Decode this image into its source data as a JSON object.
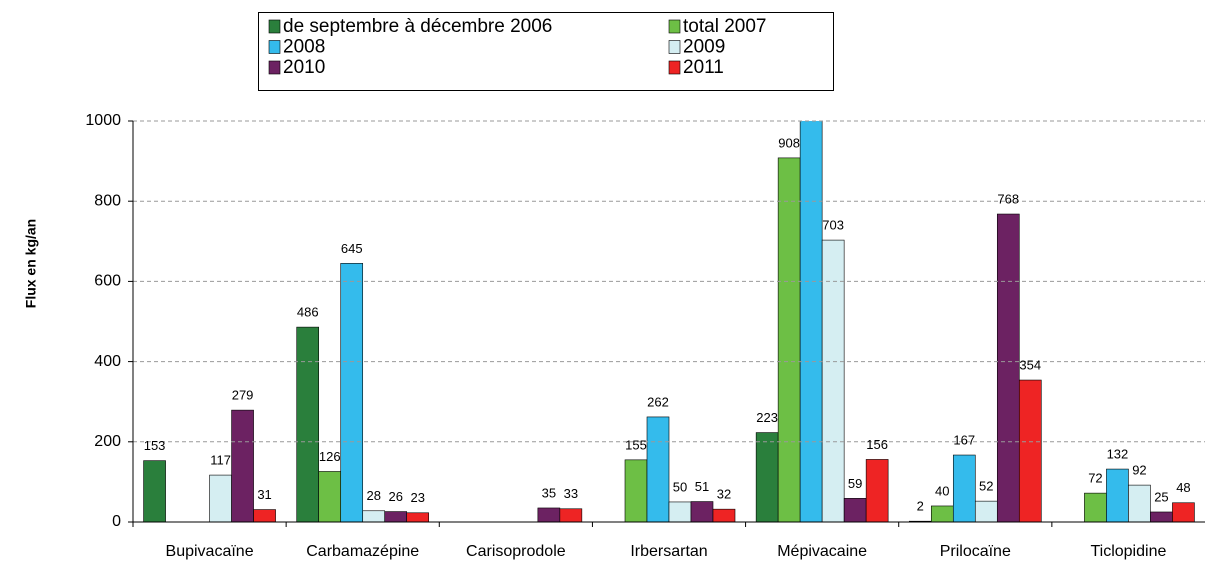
{
  "chart_data": {
    "type": "bar",
    "y_axis_label": "Flux en kg/an",
    "categories": [
      "Bupivacaïne",
      "Carbamazépine",
      "Carisoprodole",
      "Irbersartan",
      "Mépivacaine",
      "Prilocaïne",
      "Ticlopidine"
    ],
    "series": [
      {
        "name": "de septembre à décembre 2006",
        "color": "#2a7f3c",
        "values": [
          153,
          486,
          null,
          null,
          223,
          2,
          null
        ]
      },
      {
        "name": "total 2007",
        "color": "#6dbf45",
        "values": [
          null,
          126,
          null,
          155,
          908,
          40,
          72
        ]
      },
      {
        "name": "2008",
        "color": "#34bbec",
        "values": [
          null,
          645,
          null,
          262,
          1100,
          167,
          132
        ]
      },
      {
        "name": "2009",
        "color": "#d5eef2",
        "values": [
          117,
          28,
          null,
          50,
          703,
          52,
          92
        ]
      },
      {
        "name": "2010",
        "color": "#6c2262",
        "values": [
          279,
          26,
          35,
          51,
          59,
          768,
          25
        ]
      },
      {
        "name": "2011",
        "color": "#ee2424",
        "values": [
          31,
          23,
          33,
          32,
          156,
          354,
          48
        ]
      }
    ],
    "ylim": [
      0,
      1000
    ],
    "yticks": [
      0,
      200,
      400,
      600,
      800,
      1000
    ],
    "grid": true
  }
}
